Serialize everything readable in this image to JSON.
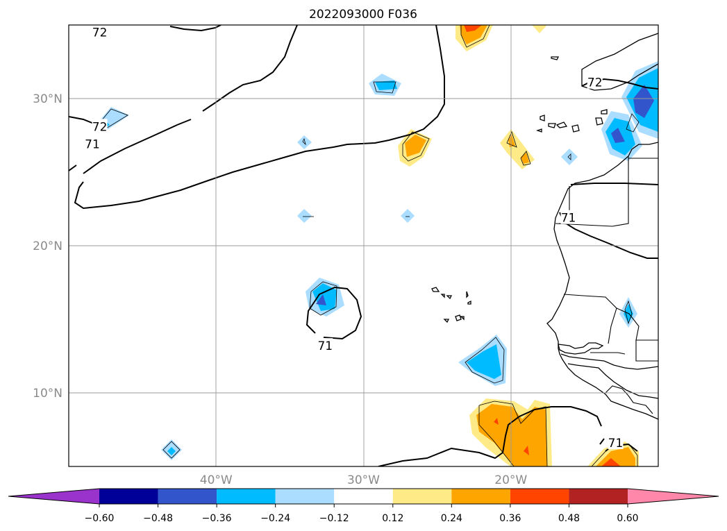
{
  "title": "2022093000 F036",
  "map": {
    "lon_range": [
      -50,
      -10
    ],
    "lat_range": [
      5,
      35
    ],
    "lat_ticks": [
      {
        "value": 10,
        "label": "10°N"
      },
      {
        "value": 20,
        "label": "20°N"
      },
      {
        "value": 30,
        "label": "30°N"
      }
    ],
    "lon_ticks": [
      {
        "value": -40,
        "label": "40°W"
      },
      {
        "value": -30,
        "label": "30°W"
      },
      {
        "value": -20,
        "label": "20°W"
      }
    ],
    "grid": true,
    "contour_labels": [
      {
        "text": "72",
        "lon": -47.9,
        "lat": 34.5
      },
      {
        "text": "72",
        "lon": -47.9,
        "lat": 28.1
      },
      {
        "text": "71",
        "lon": -48.4,
        "lat": 26.9
      },
      {
        "text": "71",
        "lon": -32.6,
        "lat": 13.2
      },
      {
        "text": "72",
        "lon": -14.3,
        "lat": 31.1
      },
      {
        "text": "71",
        "lon": -16.1,
        "lat": 21.9
      },
      {
        "text": "71",
        "lon": -12.9,
        "lat": 6.6
      }
    ]
  },
  "colorbar": {
    "ticks": [
      "−0.60",
      "−0.48",
      "−0.36",
      "−0.24",
      "−0.12",
      "0.12",
      "0.24",
      "0.36",
      "0.48",
      "0.60"
    ],
    "colors": [
      "#9933cc",
      "#000099",
      "#3355cc",
      "#00bbff",
      "#aaddff",
      "#ffffff",
      "#ffea88",
      "#ffa500",
      "#ff4400",
      "#b22222",
      "#ff88aa"
    ],
    "extend": "both"
  }
}
